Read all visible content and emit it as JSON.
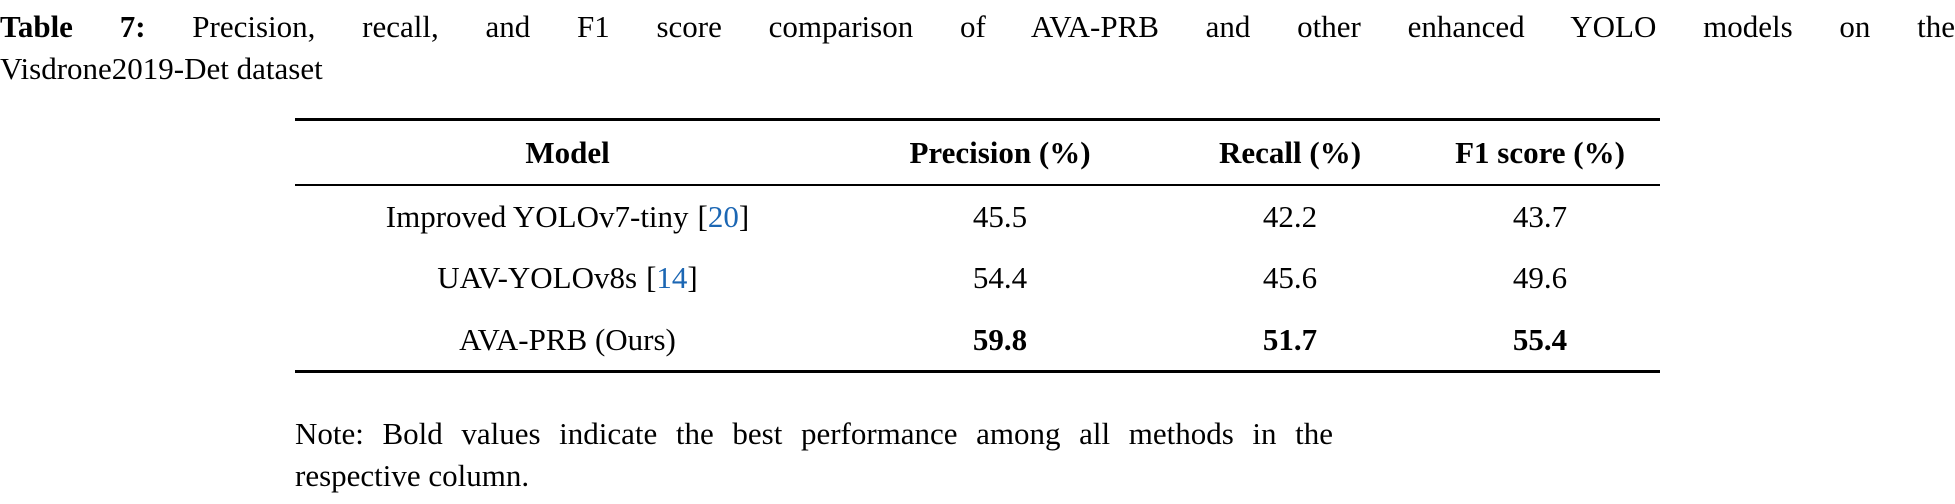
{
  "caption": {
    "label": "Table 7:",
    "line1_rest": "Precision, recall, and F1 score comparison of AVA-PRB and other enhanced YOLO models on the",
    "line2": "Visdrone2019-Det dataset"
  },
  "chart_data": {
    "type": "table",
    "title": "Precision, recall, and F1 score comparison of AVA-PRB and other enhanced YOLO models on the Visdrone2019-Det dataset",
    "columns": [
      "Model",
      "Precision (%)",
      "Recall (%)",
      "F1 score (%)"
    ],
    "rows": [
      {
        "model": "Improved YOLOv7-tiny",
        "citation": "20",
        "precision": "45.5",
        "recall": "42.2",
        "f1": "43.7",
        "best": false
      },
      {
        "model": "UAV-YOLOv8s",
        "citation": "14",
        "precision": "54.4",
        "recall": "45.6",
        "f1": "49.6",
        "best": false
      },
      {
        "model": "AVA-PRB (Ours)",
        "citation": "",
        "precision": "59.8",
        "recall": "51.7",
        "f1": "55.4",
        "best": true
      }
    ]
  },
  "note": {
    "line1": "Note: Bold values indicate the best performance among all methods in the",
    "line2": "respective column."
  },
  "colors": {
    "text": "#000000",
    "background": "#ffffff",
    "citation_link": "#1b66b3"
  }
}
